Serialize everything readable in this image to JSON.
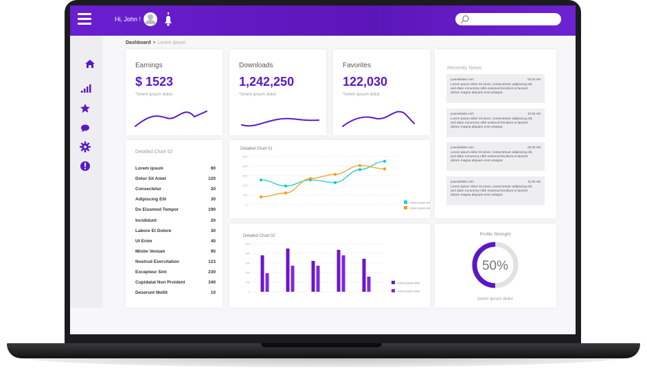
{
  "header": {
    "greeting": "Hi, John !"
  },
  "breadcrumb": {
    "current": "Dashboard",
    "separator": ">",
    "page": "Lorem Ipsum"
  },
  "stats": [
    {
      "title": "Earnings",
      "value": "$ 1523",
      "note": "*lorem ipsum dolor"
    },
    {
      "title": "Downloads",
      "value": "1,242,250",
      "note": "*lorem ipsum dolor"
    },
    {
      "title": "Favorites",
      "value": "122,030",
      "note": "*lorem ipsum dolor"
    }
  ],
  "list": {
    "title": "Detailed Chart 02",
    "rows": [
      [
        "Lorem ipsum",
        "90"
      ],
      [
        "Dolor Sit Amet",
        "120"
      ],
      [
        "Consectetur",
        "20"
      ],
      [
        "Adipiscing Elit",
        "30"
      ],
      [
        "Do Eiusmod Tempor",
        "190"
      ],
      [
        "Incididunt",
        "20"
      ],
      [
        "Labore Et Dolore",
        "30"
      ],
      [
        "Ut Enim",
        "40"
      ],
      [
        "Minim Veniam",
        "95"
      ],
      [
        "Nostrud Exercitation",
        "123"
      ],
      [
        "Excepteur Sint",
        "230"
      ],
      [
        "Cupidatat Non Proident",
        "340"
      ],
      [
        "Deserunt Mollit",
        "10"
      ]
    ]
  },
  "line_chart": {
    "type": "line",
    "title": "Detailed Chart 01",
    "ylim": [
      0,
      500
    ],
    "yticks": [
      0,
      100,
      200,
      300,
      400,
      500
    ],
    "categories": [
      null,
      null,
      null,
      null,
      null,
      null
    ],
    "series": [
      {
        "name": "Lorem ipsum dolor",
        "color": "#19c9d6",
        "values": [
          257,
          193,
          257,
          229,
          364,
          450
        ]
      },
      {
        "name": "Lorem ipsum dolor",
        "color": "#f0a11b",
        "values": [
          79,
          121,
          271,
          314,
          407,
          371
        ]
      }
    ]
  },
  "bar_chart": {
    "type": "bar",
    "title": "Detailed Chart 02",
    "ylim": [
      0,
      500
    ],
    "yticks": [
      0,
      100,
      200,
      300,
      400,
      500
    ],
    "categories": [
      null,
      null,
      null,
      null,
      null
    ],
    "series": [
      {
        "name": "Lorem ipsum dolor",
        "color": "#6a16cf",
        "values": [
          379,
          450,
          321,
          436,
          343
        ]
      },
      {
        "name": "Lorem ipsum dolor",
        "color": "#7d2ad8",
        "values": [
          193,
          271,
          271,
          379,
          157
        ]
      }
    ]
  },
  "news": {
    "title": "Recently News",
    "items": [
      {
        "source": "yourwebsite.com",
        "time": "03:30 AM",
        "text": "Lorem ipsum dolor sit amet, consectetuer adipiscing elit, sed diam nonummy nibh euismod tincidunt ut laoreet dolore magna aliquam erat volutpat."
      },
      {
        "source": "yourwebsite.com",
        "time": "10:45 AM",
        "text": "Lorem ipsum dolor sit amet, consectetuer adipiscing elit, sed diam nonummy nibh euismod tincidunt ut laoreet dolore magna aliquam erat volutpat."
      },
      {
        "source": "yourwebsite.com",
        "time": "03:30 AM",
        "text": "Lorem ipsum dolor sit amet, consectetuer adipiscing elit, sed diam nonummy nibh euismod tincidunt ut laoreet dolore magna aliquam erat volutpat."
      },
      {
        "source": "yourwebsite.com",
        "time": "11:30 AM",
        "text": "Lorem ipsum dolor sit amet, consectetuer adipiscing elit, sed diam nonummy nibh euismod tincidunt ut laoreet dolore magna aliquam erat volutpat."
      }
    ]
  },
  "profile": {
    "title": "Profile Strenght",
    "value": 50,
    "label": "50%",
    "note": "lorem ipsum dolor"
  }
}
